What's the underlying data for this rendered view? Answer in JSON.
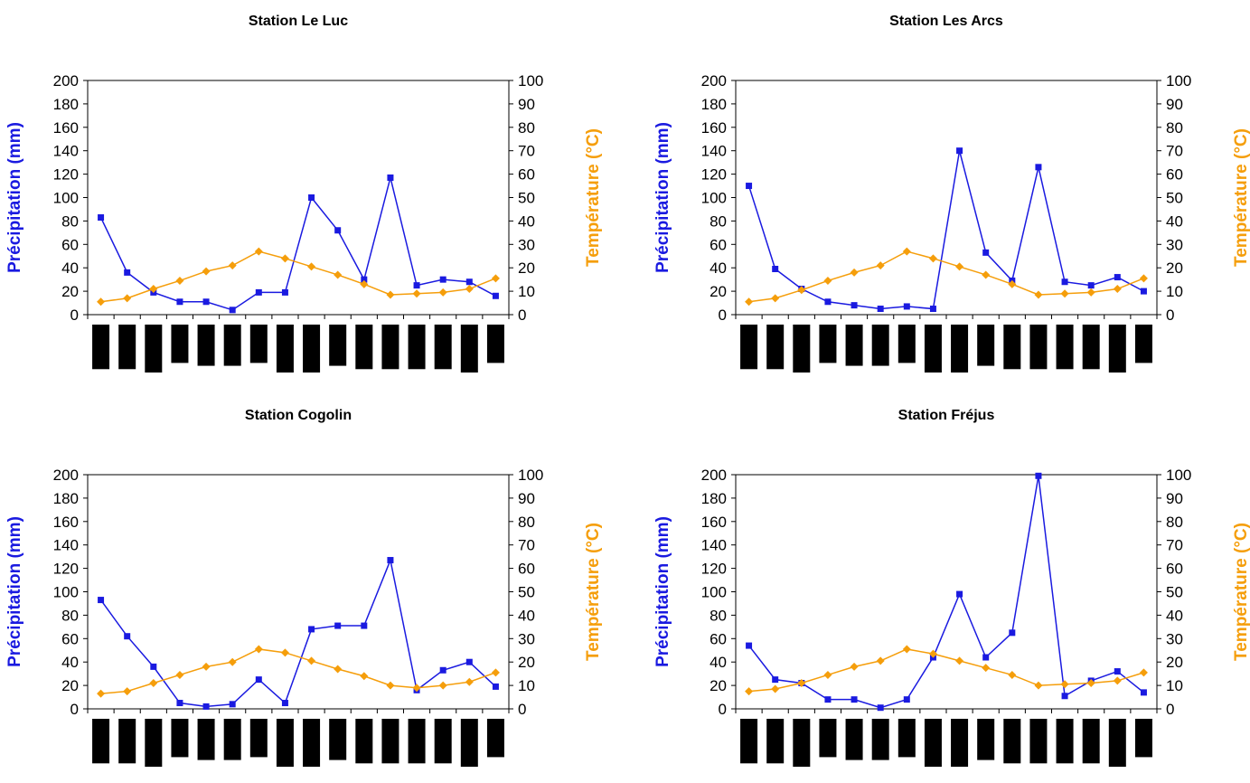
{
  "colors": {
    "precipitation": "#1a1ae0",
    "temperature": "#f59e0b",
    "axis": "#000000",
    "month_bar": "#000000"
  },
  "chart_data": [
    {
      "type": "line",
      "title": "Station Le Luc",
      "ylabel": "Précipitation (mm)",
      "y2label": "Température (°C)",
      "ylim": [
        0,
        200
      ],
      "y2lim": [
        0,
        100
      ],
      "yticks": [
        "0",
        "20",
        "40",
        "60",
        "80",
        "100",
        "120",
        "140",
        "160",
        "180",
        "200"
      ],
      "y2ticks": [
        "0",
        "10",
        "20",
        "30",
        "40",
        "50",
        "60",
        "70",
        "80",
        "90",
        "100"
      ],
      "month_bar_heights": [
        0.93,
        0.93,
        1.0,
        0.8,
        0.86,
        0.86,
        0.8,
        1.0,
        1.0,
        0.86,
        0.93,
        0.93,
        0.93,
        0.93,
        1.0,
        0.8
      ],
      "series": [
        {
          "name": "Précipitation (mm)",
          "axis": "left",
          "values": [
            83,
            36,
            19,
            11,
            11,
            4,
            19,
            19,
            100,
            72,
            30,
            117,
            25,
            30,
            28,
            16
          ]
        },
        {
          "name": "Température (°C)",
          "axis": "right",
          "values": [
            5.5,
            7,
            11,
            14.5,
            18.5,
            21,
            27,
            24,
            20.5,
            17,
            13,
            8.5,
            9,
            9.5,
            11,
            15.5
          ]
        }
      ]
    },
    {
      "type": "line",
      "title": "Station Les Arcs",
      "ylabel": "Précipitation (mm)",
      "y2label": "Température (°C)",
      "ylim": [
        0,
        200
      ],
      "y2lim": [
        0,
        100
      ],
      "yticks": [
        "0",
        "20",
        "40",
        "60",
        "80",
        "100",
        "120",
        "140",
        "160",
        "180",
        "200"
      ],
      "y2ticks": [
        "0",
        "10",
        "20",
        "30",
        "40",
        "50",
        "60",
        "70",
        "80",
        "90",
        "100"
      ],
      "month_bar_heights": [
        0.93,
        0.93,
        1.0,
        0.8,
        0.86,
        0.86,
        0.8,
        1.0,
        1.0,
        0.86,
        0.93,
        0.93,
        0.93,
        0.93,
        1.0,
        0.8
      ],
      "series": [
        {
          "name": "Précipitation (mm)",
          "axis": "left",
          "values": [
            110,
            39,
            22,
            11,
            8,
            5,
            7,
            5,
            140,
            53,
            29,
            126,
            28,
            25,
            32,
            20
          ]
        },
        {
          "name": "Température (°C)",
          "axis": "right",
          "values": [
            5.5,
            7,
            10.5,
            14.5,
            18,
            21,
            27,
            24,
            20.5,
            17,
            13,
            8.5,
            9,
            9.5,
            11,
            15.5
          ]
        }
      ]
    },
    {
      "type": "line",
      "title": "Station Cogolin",
      "ylabel": "Précipitation (mm)",
      "y2label": "Température (°C)",
      "ylim": [
        0,
        200
      ],
      "y2lim": [
        0,
        100
      ],
      "yticks": [
        "0",
        "20",
        "40",
        "60",
        "80",
        "100",
        "120",
        "140",
        "160",
        "180",
        "200"
      ],
      "y2ticks": [
        "0",
        "10",
        "20",
        "30",
        "40",
        "50",
        "60",
        "70",
        "80",
        "90",
        "100"
      ],
      "month_bar_heights": [
        0.93,
        0.93,
        1.0,
        0.8,
        0.86,
        0.86,
        0.8,
        1.0,
        1.0,
        0.86,
        0.93,
        0.93,
        0.93,
        0.93,
        1.0,
        0.8
      ],
      "series": [
        {
          "name": "Précipitation (mm)",
          "axis": "left",
          "values": [
            93,
            62,
            36,
            5,
            2,
            4,
            25,
            5,
            68,
            71,
            71,
            127,
            16,
            33,
            40,
            19
          ]
        },
        {
          "name": "Température (°C)",
          "axis": "right",
          "values": [
            6.5,
            7.5,
            11,
            14.5,
            18,
            20,
            25.5,
            24,
            20.5,
            17,
            14,
            10,
            9,
            10,
            11.5,
            15.5
          ]
        }
      ]
    },
    {
      "type": "line",
      "title": "Station Fréjus",
      "ylabel": "Précipitation (mm)",
      "y2label": "Température (°C)",
      "ylim": [
        0,
        200
      ],
      "y2lim": [
        0,
        100
      ],
      "yticks": [
        "0",
        "20",
        "40",
        "60",
        "80",
        "100",
        "120",
        "140",
        "160",
        "180",
        "200"
      ],
      "y2ticks": [
        "0",
        "10",
        "20",
        "30",
        "40",
        "50",
        "60",
        "70",
        "80",
        "90",
        "100"
      ],
      "month_bar_heights": [
        0.93,
        0.93,
        1.0,
        0.8,
        0.86,
        0.86,
        0.8,
        1.0,
        1.0,
        0.86,
        0.93,
        0.93,
        0.93,
        0.93,
        1.0,
        0.8
      ],
      "series": [
        {
          "name": "Précipitation (mm)",
          "axis": "left",
          "values": [
            54,
            25,
            22,
            8,
            8,
            1,
            8,
            44,
            98,
            44,
            65,
            199,
            11,
            24,
            32,
            14
          ]
        },
        {
          "name": "Température (°C)",
          "axis": "right",
          "values": [
            7.5,
            8.5,
            11,
            14.5,
            18,
            20.5,
            25.5,
            23.5,
            20.5,
            17.5,
            14.5,
            10,
            10.5,
            11,
            12,
            15.5
          ]
        }
      ]
    }
  ]
}
